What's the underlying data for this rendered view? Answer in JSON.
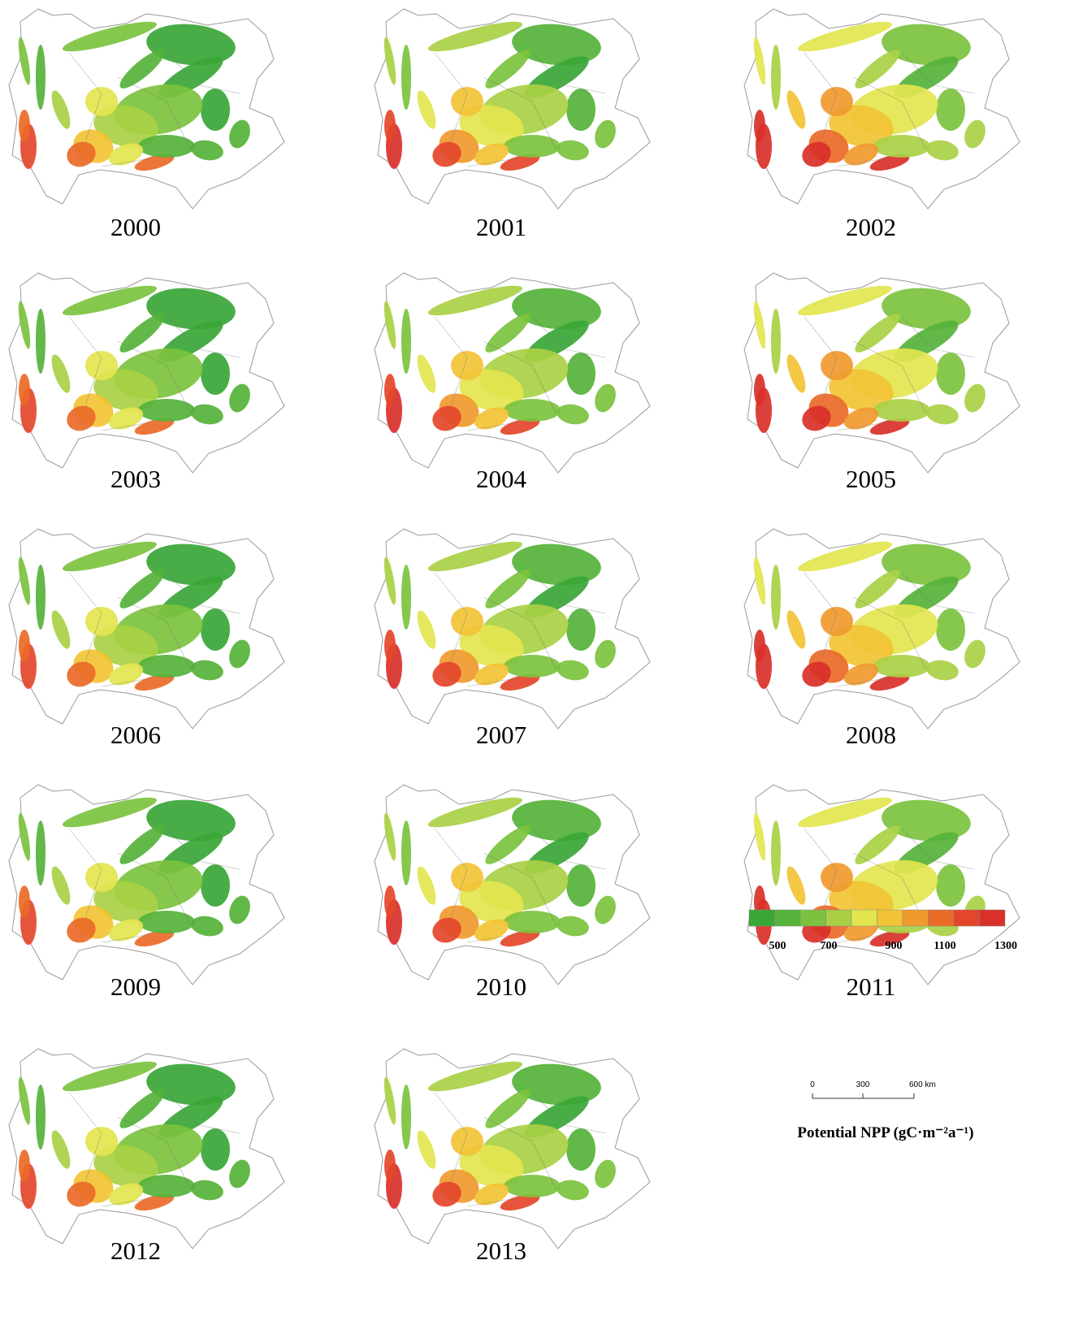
{
  "years": [
    "2000",
    "2001",
    "2002",
    "2003",
    "2004",
    "2005",
    "2006",
    "2007",
    "2008",
    "2009",
    "2010",
    "2011",
    "2012",
    "2013"
  ],
  "scale_bar": {
    "labels": [
      "0",
      "300",
      "600 km"
    ]
  },
  "legend": {
    "title": "Potential NPP (gC·m⁻²a⁻¹)",
    "colors": [
      "#3aa637",
      "#55b23a",
      "#7cc23e",
      "#a9d044",
      "#e3e54f",
      "#f2c335",
      "#f09a2e",
      "#ea6a28",
      "#e4462a",
      "#d9302a"
    ],
    "labels": [
      500,
      700,
      900,
      1100,
      1300
    ]
  }
}
